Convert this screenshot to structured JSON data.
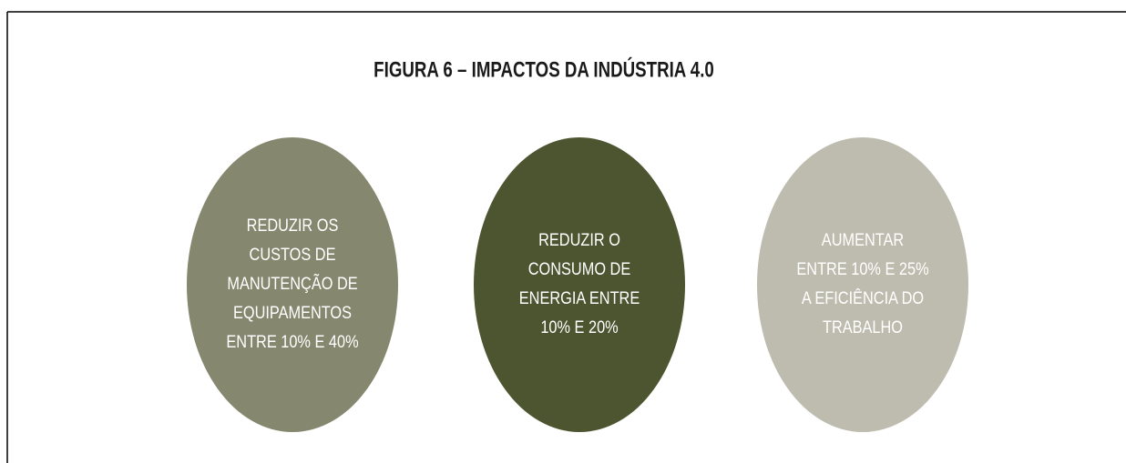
{
  "title": "FIGURA 6 – IMPACTOS DA INDÚSTRIA 4.0",
  "nodes": [
    {
      "lines": [
        "REDUZIR OS",
        "CUSTOS DE",
        "MANUTENÇÃO DE",
        "EQUIPAMENTOS",
        "ENTRE 10% E 40%"
      ],
      "color": "#85876e"
    },
    {
      "lines": [
        "REDUZIR O",
        "CONSUMO DE",
        "ENERGIA ENTRE",
        "10% E 20%"
      ],
      "color": "#4d5430"
    },
    {
      "lines": [
        "AUMENTAR",
        "ENTRE 10% E 25%",
        "A EFICIÊNCIA DO",
        "TRABALHO"
      ],
      "color": "#bdbcae"
    }
  ]
}
